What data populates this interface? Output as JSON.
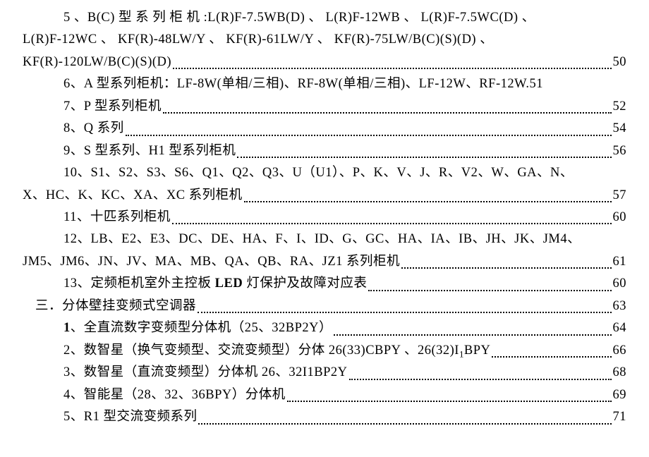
{
  "font": {
    "family": "SimSun",
    "size_pt": 14,
    "color": "#000000",
    "background": "#ffffff"
  },
  "toc": [
    {
      "lines": [
        "5 、B(C) 型 系 列 柜 机 :L(R)F-7.5WB(D) 、 L(R)F-12WB 、  L(R)F-7.5WC(D) 、",
        "L(R)F-12WC  、 KF(R)-48LW/Y  、 KF(R)-61LW/Y  、 KF(R)-75LW/B(C)(S)(D)  、",
        "KF(R)-120LW/B(C)(S)(D) "
      ],
      "page": "50",
      "indent_first": "indent1",
      "indent_rest": "noindent"
    },
    {
      "lines": [
        "6、A 型系列柜机：LF-8W(单相/三相)、RF-8W(单相/三相)、LF-12W、RF-12W."
      ],
      "page": "51",
      "indent_first": "indent1"
    },
    {
      "lines": [
        "7、P 型系列柜机"
      ],
      "page": "52",
      "indent_first": "indent1"
    },
    {
      "lines": [
        "8、Q 系列"
      ],
      "page": "54",
      "indent_first": "indent1"
    },
    {
      "lines": [
        "9、S 型系列、H1 型系列柜机"
      ],
      "page": "56",
      "indent_first": "indent1"
    },
    {
      "lines": [
        "10、S1、S2、S3、S6、Q1、Q2、Q3、U（U1）、P、K、V、J、R、V2、W、GA、N、",
        "X、HC、K、KC、XA、XC 系列柜机 "
      ],
      "page": "57",
      "indent_first": "indent1",
      "indent_rest": "noindent"
    },
    {
      "lines": [
        "11、十匹系列柜机"
      ],
      "page": "60",
      "indent_first": "indent1"
    },
    {
      "lines": [
        "12、LB、E2、E3、DC、DE、HA、F、I、ID、G、GC、HA、IA、IB、JH、JK、JM4、",
        "JM5、JM6、JN、JV、MA、MB、QA、QB、RA、JZ1 系列柜机 "
      ],
      "page": "61",
      "indent_first": "indent1",
      "indent_rest": "noindent"
    },
    {
      "lines": [
        "13、定频柜机室外主控板 LED 灯保护及故障对应表 "
      ],
      "page": "60",
      "indent_first": "indent1",
      "bold_fragment": "LED"
    },
    {
      "lines": [
        "三．分体壁挂变频式空调器"
      ],
      "page": "63",
      "indent_first": "indent0"
    },
    {
      "lines": [
        "1、全直流数字变频型分体机（25、32BP2Y） "
      ],
      "page": "64",
      "indent_first": "indent1",
      "bold_fragment": "1"
    },
    {
      "lines": [
        "2、数智星（换气变频型、交流变频型）分体 26(33)CBPY 、26(32)I₁BPY"
      ],
      "page": "66",
      "indent_first": "indent1"
    },
    {
      "lines": [
        "3、数智星（直流变频型）分体机 26、32I1BP2Y"
      ],
      "page": "68",
      "indent_first": "indent1"
    },
    {
      "lines": [
        "4、智能星（28、32、36BPY）分体机 "
      ],
      "page": "69",
      "indent_first": "indent1"
    },
    {
      "lines": [
        "5、R1 型交流变频系列"
      ],
      "page": "71",
      "indent_first": "indent1"
    }
  ]
}
